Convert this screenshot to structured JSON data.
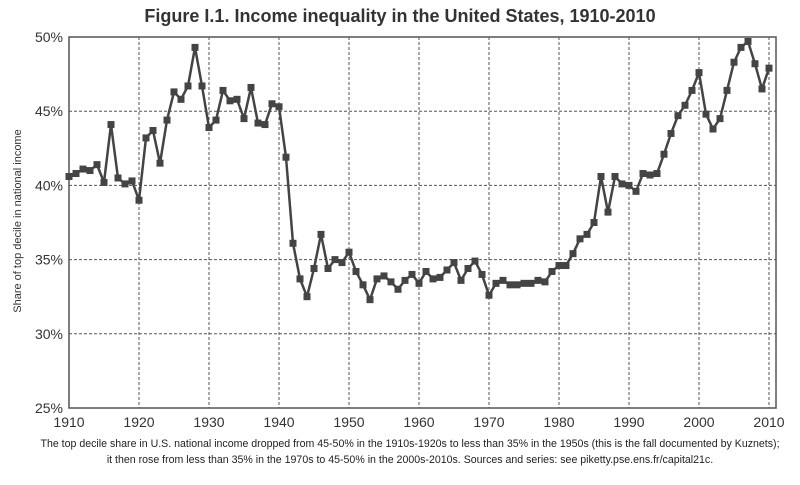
{
  "chart_data": {
    "type": "line",
    "title": "Figure I.1. Income inequality in the United States, 1910-2010",
    "xlabel": "",
    "ylabel": "Share of top decile in national income",
    "xlim": [
      1910,
      2011
    ],
    "ylim": [
      25,
      50
    ],
    "grid": true,
    "marker": "square",
    "color": "#444444",
    "x_ticks": [
      "1910",
      "1920",
      "1930",
      "1940",
      "1950",
      "1960",
      "1970",
      "1980",
      "1990",
      "2000",
      "2010"
    ],
    "y_ticks": [
      "25%",
      "30%",
      "35%",
      "40%",
      "45%",
      "50%"
    ],
    "x_start": 1910,
    "values": [
      40.6,
      40.8,
      41.1,
      41.0,
      41.4,
      40.2,
      44.1,
      40.5,
      40.1,
      40.3,
      39.0,
      43.2,
      43.7,
      41.5,
      44.4,
      46.3,
      45.8,
      46.7,
      49.3,
      46.7,
      43.9,
      44.4,
      46.4,
      45.7,
      45.8,
      44.5,
      46.6,
      44.2,
      44.1,
      45.5,
      45.3,
      41.9,
      36.1,
      33.7,
      32.5,
      34.4,
      36.7,
      34.4,
      35.0,
      34.8,
      35.5,
      34.2,
      33.3,
      32.3,
      33.7,
      33.9,
      33.5,
      33.0,
      33.6,
      34.0,
      33.4,
      34.2,
      33.7,
      33.8,
      34.3,
      34.8,
      33.6,
      34.4,
      34.9,
      34.0,
      32.6,
      33.4,
      33.6,
      33.3,
      33.3,
      33.4,
      33.4,
      33.6,
      33.5,
      34.2,
      34.6,
      34.6,
      35.4,
      36.4,
      36.7,
      37.5,
      40.6,
      38.2,
      40.6,
      40.1,
      40.0,
      39.6,
      40.8,
      40.7,
      40.8,
      42.1,
      43.5,
      44.7,
      45.4,
      46.4,
      47.6,
      44.8,
      43.8,
      44.5,
      46.4,
      48.3,
      49.3,
      49.7,
      48.2,
      46.5,
      47.9
    ]
  },
  "caption": "The top decile share in U.S. national income dropped from 45-50% in the 1910s-1920s to less than 35% in the 1950s (this is the fall documented by Kuznets); it then rose from less than 35% in the 1970s to 45-50% in the 2000s-2010s. Sources and series: see piketty.pse.ens.fr/capital21c."
}
